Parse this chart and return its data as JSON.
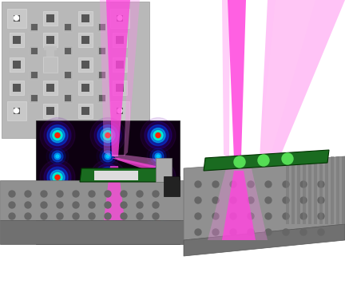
{
  "fig_width": 4.32,
  "fig_height": 3.56,
  "dpi": 100,
  "bg_color": "#ffffff",
  "beam_color_bright": "#ff44dd",
  "beam_color_mid": "#ff88ee",
  "beam_color_light": "#ffccf5",
  "green_board_color": "#1a6b20",
  "green_dot_color": "#55dd55",
  "platform_color": "#909090",
  "platform_dark": "#606060",
  "platform_stripe": "#707070"
}
